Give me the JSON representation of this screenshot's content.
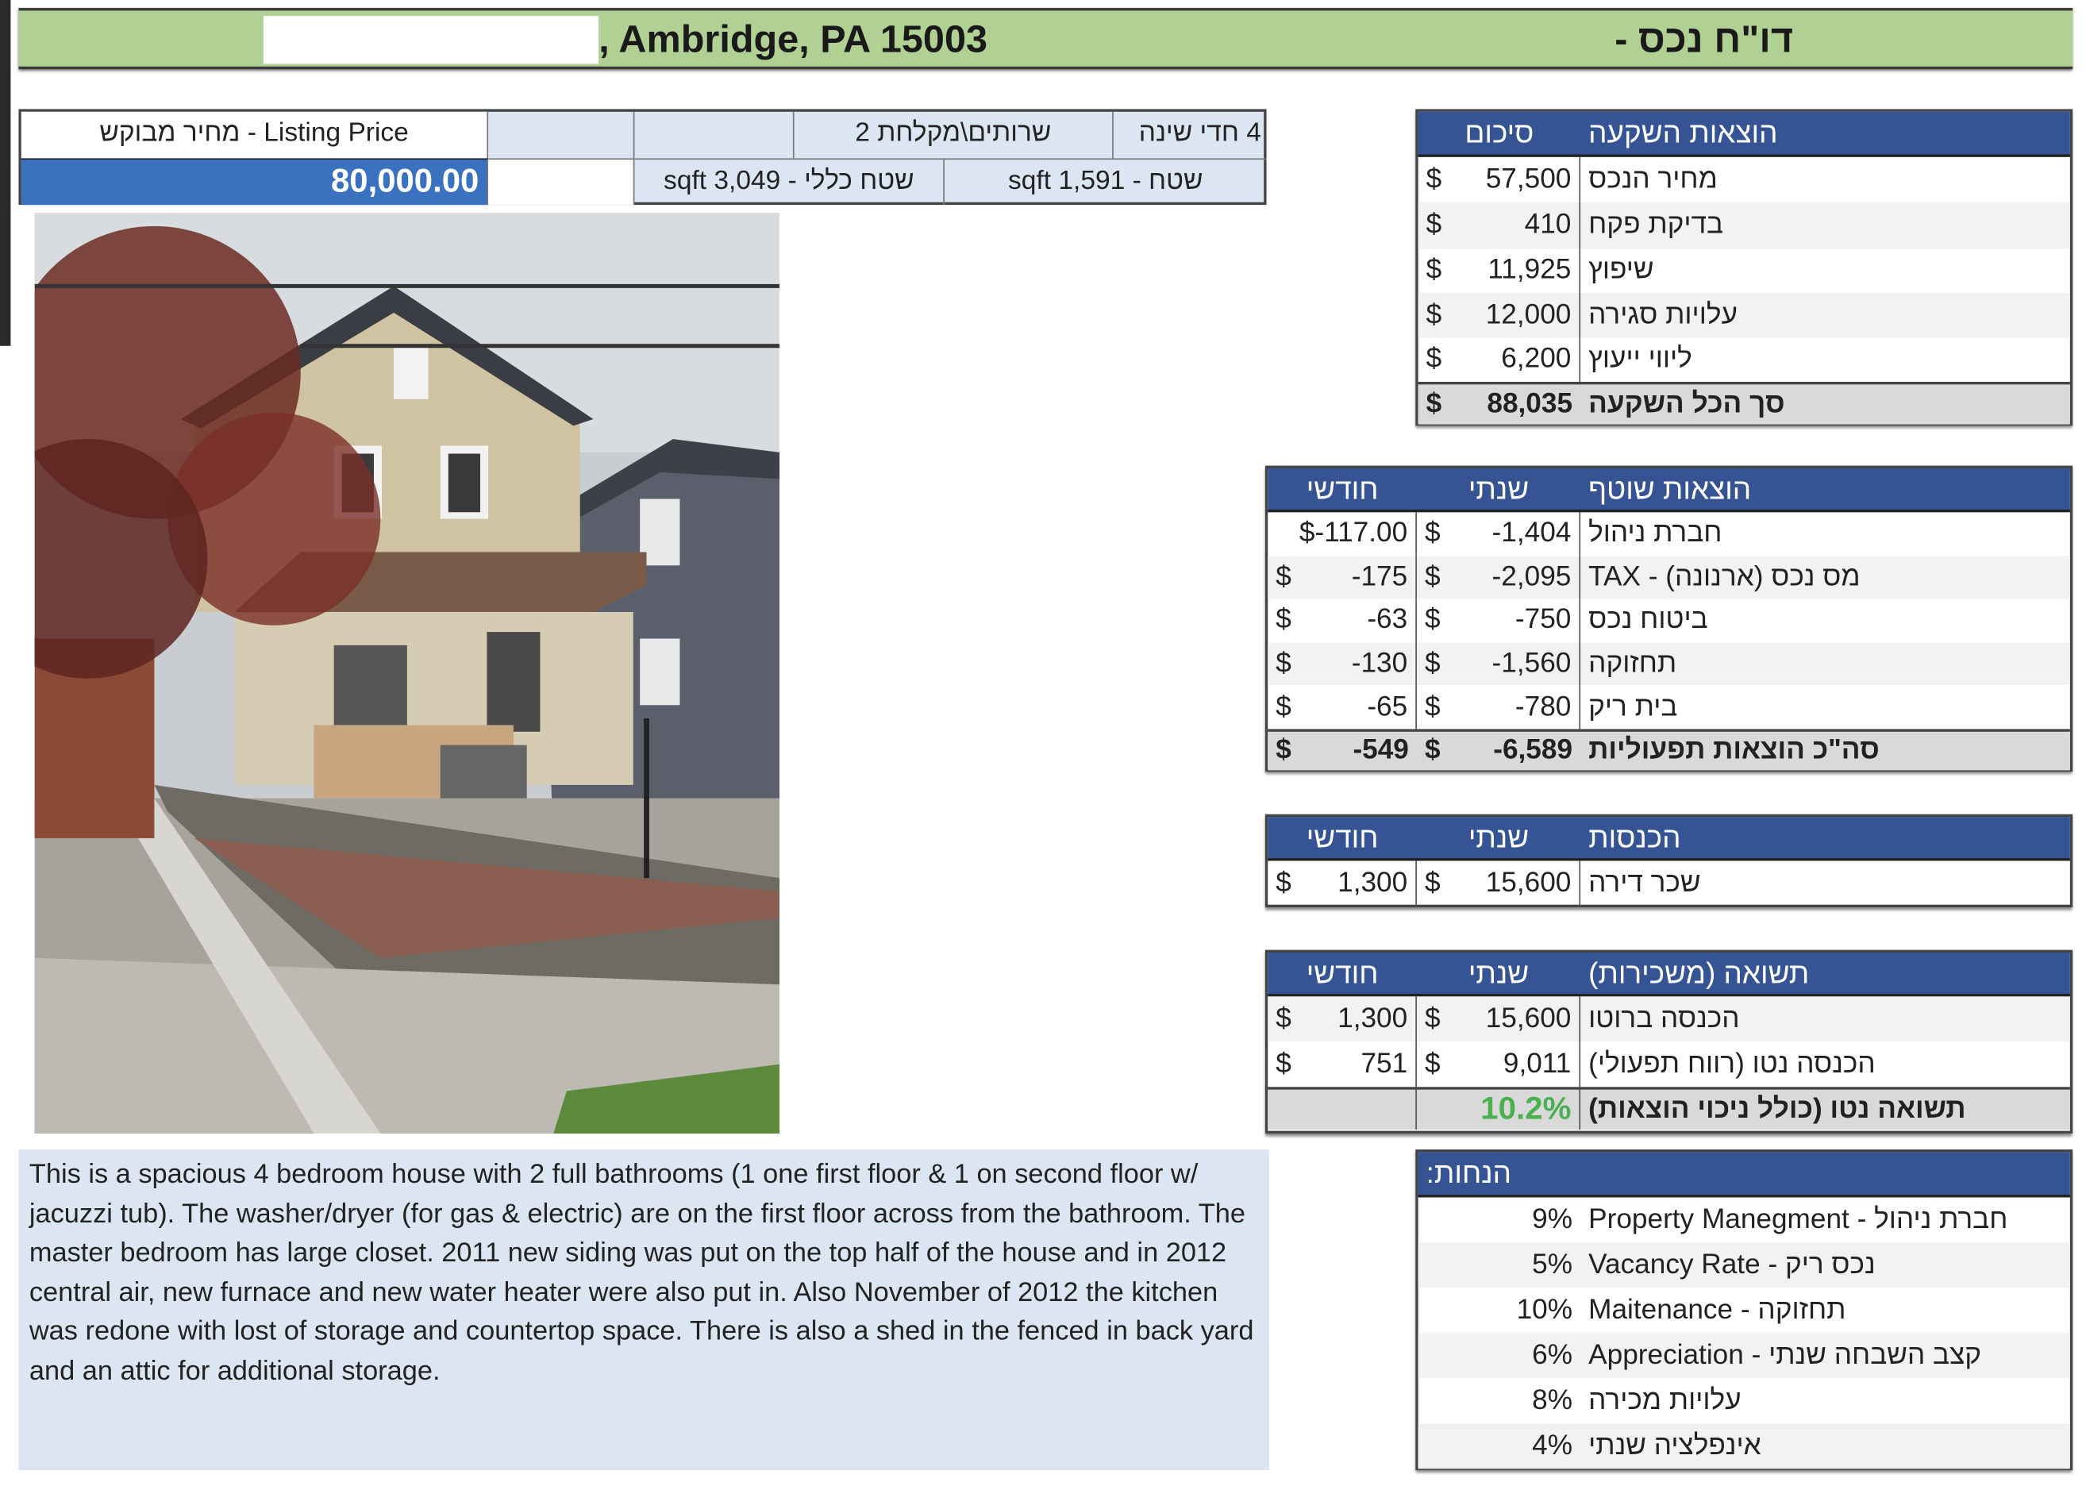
{
  "title": {
    "address": ", Ambridge, PA 15003",
    "report": "דו\"ח נכס -"
  },
  "info": {
    "listing_label": "Listing Price - מחיר מבוקש",
    "listing_price": "80,000.00",
    "bedrooms": "4 חדי שינה",
    "bathrooms": "שרותים\\מקלחת 2",
    "living_area": "שטח - sqft 1,591",
    "total_area": "שטח כללי - sqft 3,049"
  },
  "description": "This is a spacious 4 bedroom house with 2 full bathrooms (1 one first floor & 1 on second floor w/ jacuzzi tub).  The washer/dryer (for gas & electric) are on the first floor across from the bathroom. The master bedroom has large closet.  2011 new siding was put on the top half of the house and in 2012 central air, new furnace and new water heater were also put in.  Also November of 2012 the kitchen was redone with lost of storage and countertop space.  There is also a shed in the fenced in back yard and an attic for additional storage.",
  "investment": {
    "header": {
      "label": "הוצאות השקעה",
      "value": "סיכום"
    },
    "rows": [
      {
        "label": "מחיר הנכס",
        "cur": "$",
        "val": "57,500"
      },
      {
        "label": "בדיקת פקח",
        "cur": "$",
        "val": "410"
      },
      {
        "label": "שיפוץ",
        "cur": "$",
        "val": "11,925"
      },
      {
        "label": "עלויות סגירה",
        "cur": "$",
        "val": "12,000"
      },
      {
        "label": "ליווי ייעוץ",
        "cur": "$",
        "val": "6,200"
      }
    ],
    "total": {
      "label": "סך הכל השקעה",
      "cur": "$",
      "val": "88,035"
    }
  },
  "operating": {
    "header": {
      "label": "הוצאות שוטף",
      "annual": "שנתי",
      "monthly": "חודשי"
    },
    "rows": [
      {
        "label": "חברת ניהול",
        "annual": {
          "cur": "$",
          "val": "-1,404"
        },
        "monthly": {
          "cur": "",
          "val": "$-117.00"
        }
      },
      {
        "label": "מס נכס (ארנונה) - TAX",
        "annual": {
          "cur": "$",
          "val": "-2,095"
        },
        "monthly": {
          "cur": "$",
          "val": "-175"
        }
      },
      {
        "label": "ביטוח נכס",
        "annual": {
          "cur": "$",
          "val": "-750"
        },
        "monthly": {
          "cur": "$",
          "val": "-63"
        }
      },
      {
        "label": "תחזוקה",
        "annual": {
          "cur": "$",
          "val": "-1,560"
        },
        "monthly": {
          "cur": "$",
          "val": "-130"
        }
      },
      {
        "label": "בית ריק",
        "annual": {
          "cur": "$",
          "val": "-780"
        },
        "monthly": {
          "cur": "$",
          "val": "-65"
        }
      }
    ],
    "total": {
      "label": "סה\"כ הוצאות תפעוליות",
      "annual": {
        "cur": "$",
        "val": "-6,589"
      },
      "monthly": {
        "cur": "$",
        "val": "-549"
      }
    }
  },
  "income": {
    "header": {
      "label": "הכנסות",
      "annual": "שנתי",
      "monthly": "חודשי"
    },
    "rows": [
      {
        "label": "שכר דירה",
        "annual": {
          "cur": "$",
          "val": "15,600"
        },
        "monthly": {
          "cur": "$",
          "val": "1,300"
        }
      }
    ]
  },
  "returns": {
    "header": {
      "label": "תשואה (משכירות)",
      "annual": "שנתי",
      "monthly": "חודשי"
    },
    "rows": [
      {
        "label": "הכנסה ברוטו",
        "annual": {
          "cur": "$",
          "val": "15,600"
        },
        "monthly": {
          "cur": "$",
          "val": "1,300"
        }
      },
      {
        "label": "הכנסה נטו (רווח תפעולי)",
        "annual": {
          "cur": "$",
          "val": "9,011"
        },
        "monthly": {
          "cur": "$",
          "val": "751"
        }
      }
    ],
    "total": {
      "label": "תשואה נטו (כולל ניכוי הוצאות)",
      "annual_pct": "10.2%",
      "color": "#4caf50"
    }
  },
  "assumptions": {
    "header": "הנחות:",
    "rows": [
      {
        "label": "חברת ניהול - Property Manegment",
        "val": "9%"
      },
      {
        "label": "נכס ריק - Vacancy Rate",
        "val": "5%"
      },
      {
        "label": "תחזוקה - Maitenance",
        "val": "10%"
      },
      {
        "label": "קצב השבחה שנתי - Appreciation",
        "val": "6%"
      },
      {
        "label": "עלויות מכירה",
        "val": "8%"
      },
      {
        "label": "אינפלציה שנתי",
        "val": "4%"
      }
    ]
  },
  "colors": {
    "header_blue": "#365494",
    "title_green": "#b1d093",
    "price_blue": "#3b72c0",
    "panel_blue": "#dce6f2"
  }
}
